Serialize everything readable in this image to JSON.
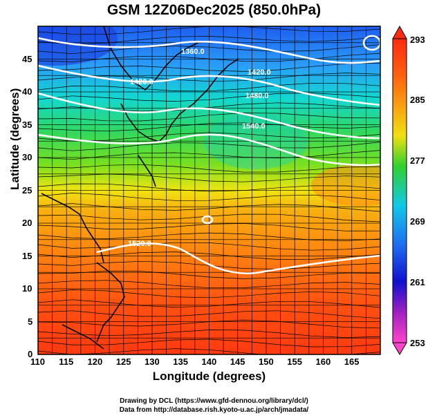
{
  "title": "GSM 12Z06Dec2025 (850.0hPa)",
  "xlabel": "Longitude (degrees)",
  "ylabel": "Latitude  (degrees)",
  "credits": [
    "Drawing by DCL (https://www.gfd-dennou.org/library/dcl/)",
    "Data from http://database.rish.kyoto-u.ac.jp/arch/jmadata/"
  ],
  "x_ticks": [
    "110",
    "115",
    "120",
    "125",
    "130",
    "135",
    "140",
    "145",
    "150",
    "155",
    "160",
    "165"
  ],
  "y_ticks": [
    "0",
    "5",
    "10",
    "15",
    "20",
    "25",
    "30",
    "35",
    "40",
    "45"
  ],
  "colorbar_ticks": [
    "293",
    "285",
    "277",
    "269",
    "261",
    "253"
  ],
  "contour_labels": [
    "1360.0",
    "1420.0",
    "1480.0",
    "1540.0",
    "1520.0"
  ],
  "colors": {
    "colorbar": [
      "#ff44cc",
      "#a020c0",
      "#1010d0",
      "#1e6cf0",
      "#10c8e8",
      "#20e0a0",
      "#30d030",
      "#90e020",
      "#f0e010",
      "#f8a010",
      "#ff6010",
      "#ff2a10"
    ]
  },
  "chart_data": {
    "type": "heatmap",
    "title": "GSM 12Z06Dec2025 (850.0hPa)",
    "xlabel": "Longitude (degrees)",
    "ylabel": "Latitude  (degrees)",
    "xlim": [
      110,
      170
    ],
    "ylim": [
      0,
      50
    ],
    "colorbar": {
      "min": 253,
      "max": 293,
      "ticks": [
        293,
        285,
        277,
        269,
        261,
        253
      ]
    },
    "contour_labels": [
      1360.0,
      1420.0,
      1480.0,
      1540.0,
      1520.0
    ]
  }
}
